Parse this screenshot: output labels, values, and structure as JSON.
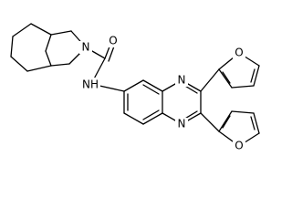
{
  "atom_labels": [
    "N",
    "O",
    "NH",
    "N",
    "N",
    "O",
    "O"
  ]
}
